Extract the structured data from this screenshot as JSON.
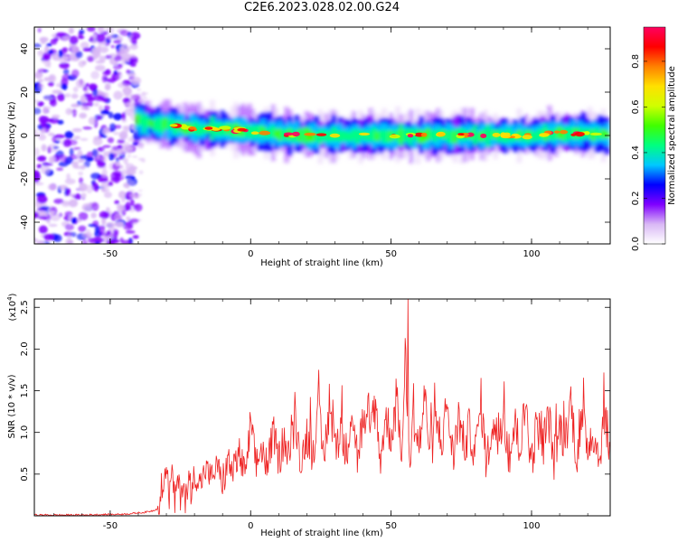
{
  "title": "C2E6.2023.028.02.00.G24",
  "chart_data": [
    {
      "type": "heatmap",
      "title": "",
      "xlabel": "Height of straight line (km)",
      "ylabel": "Frequency (Hz)",
      "xlim": [
        -77,
        128
      ],
      "ylim": [
        -50,
        50
      ],
      "xticks": [
        -50,
        0,
        50,
        100
      ],
      "yticks": [
        -40,
        -20,
        0,
        20,
        40
      ],
      "grid": false,
      "ridge": {
        "description_free": true,
        "x": [
          -40,
          -35,
          -30,
          -25,
          -20,
          -10,
          0,
          10,
          20,
          30,
          40,
          50,
          60,
          70,
          80,
          90,
          100,
          110,
          120,
          128
        ],
        "y": [
          7,
          5,
          5,
          4,
          3,
          3,
          2,
          1,
          0,
          0,
          0,
          0,
          0,
          0,
          0,
          0,
          0,
          1,
          1,
          0
        ]
      },
      "colorbar": {
        "label": "Normalized spectral amplitude",
        "range": [
          0.0,
          0.95
        ],
        "ticks": [
          "0.0",
          "0.2",
          "0.4",
          "0.6",
          "0.8"
        ],
        "tick_values": [
          0.0,
          0.2,
          0.4,
          0.6,
          0.8
        ],
        "colors": [
          "#ffffff",
          "#d9b8f5",
          "#8000ff",
          "#0000ff",
          "#00c8ff",
          "#00ff80",
          "#40ff00",
          "#d0ff00",
          "#ffe000",
          "#ff8000",
          "#ff0000",
          "#ff0060"
        ]
      }
    },
    {
      "type": "line",
      "title": "",
      "xlabel": "Height of straight line (km)",
      "ylabel": "SNR (10 * v/v)",
      "scale_label": "(x10",
      "scale_exponent": "4",
      "scale_suffix": ")",
      "xlim": [
        -77,
        128
      ],
      "ylim": [
        0,
        2.6
      ],
      "xticks": [
        -50,
        0,
        50,
        100
      ],
      "yticks": [
        0.5,
        1.0,
        1.5,
        2.0,
        2.5
      ],
      "ytick_labels": [
        "0.5",
        "1.0",
        "1.5",
        "2.0",
        "2.5"
      ],
      "grid": false,
      "series_color": "#ee2222",
      "series": [
        {
          "x": [
            -77,
            -60,
            -45,
            -38,
            -35,
            -32,
            -31,
            -30,
            -29,
            -28,
            -27,
            -26,
            -25,
            -24,
            -23,
            -22,
            -21,
            -20,
            -18,
            -16,
            -14,
            -12,
            -10,
            -8,
            -6,
            -4,
            -2,
            0,
            2,
            4,
            6,
            8,
            10,
            12,
            14,
            16,
            18,
            20,
            22,
            24,
            26,
            28,
            30,
            32,
            34,
            36,
            38,
            40,
            42,
            44,
            46,
            48,
            50,
            52,
            54,
            55,
            56,
            57,
            58,
            60,
            62,
            64,
            66,
            68,
            70,
            72,
            74,
            76,
            78,
            80,
            82,
            84,
            86,
            88,
            90,
            92,
            94,
            96,
            98,
            100,
            102,
            104,
            106,
            108,
            110,
            112,
            114,
            116,
            118,
            120,
            122,
            124,
            126,
            128
          ],
          "values": [
            0.01,
            0.01,
            0.02,
            0.04,
            0.06,
            0.1,
            0.6,
            0.8,
            0.3,
            0.7,
            0.2,
            0.6,
            0.3,
            0.6,
            0.1,
            0.6,
            0.35,
            0.7,
            0.5,
            0.75,
            0.6,
            0.8,
            0.55,
            0.85,
            0.7,
            1.0,
            0.6,
            1.4,
            0.8,
            1.1,
            0.75,
            1.35,
            0.9,
            1.2,
            1.0,
            1.5,
            0.85,
            1.3,
            1.05,
            1.65,
            0.9,
            1.7,
            1.1,
            1.4,
            1.0,
            1.75,
            0.95,
            1.5,
            1.2,
            1.85,
            0.9,
            1.55,
            1.3,
            1.8,
            1.0,
            2.6,
            1.5,
            0.9,
            1.6,
            1.1,
            1.9,
            1.0,
            1.5,
            1.2,
            1.8,
            0.9,
            1.6,
            1.1,
            1.4,
            1.0,
            1.85,
            0.8,
            1.5,
            1.2,
            1.7,
            0.9,
            1.45,
            1.1,
            1.8,
            0.85,
            1.5,
            1.1,
            1.6,
            0.9,
            1.4,
            1.2,
            1.85,
            0.95,
            1.5,
            1.15,
            1.35,
            0.9,
            1.65,
            1.0
          ]
        }
      ]
    }
  ]
}
